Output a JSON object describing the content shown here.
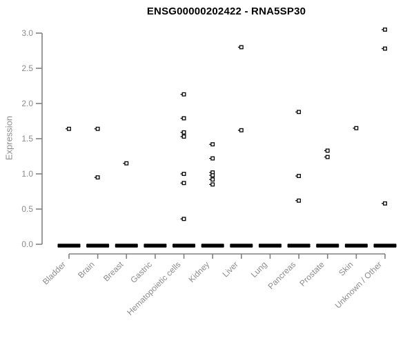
{
  "title": "ENSG00000202422 - RNA5SP30",
  "chart_data": {
    "type": "scatter",
    "subtype": "strip-plot-by-category",
    "title": "ENSG00000202422 - RNA5SP30",
    "xlabel": "",
    "ylabel": "Expression",
    "ylim": [
      0.0,
      3.0
    ],
    "ytick_labels": [
      "0.0",
      "0.5",
      "1.0",
      "1.5",
      "2.0",
      "2.5",
      "3.0"
    ],
    "ytick_values": [
      0.0,
      0.5,
      1.0,
      1.5,
      2.0,
      2.5,
      3.0
    ],
    "grid": false,
    "legend_position": "none",
    "marker": "small-open-black-square-with-left-tick",
    "categories": [
      "Bladder",
      "Brain",
      "Breast",
      "Gastric",
      "Hematopoietic cells",
      "Kidney",
      "Liver",
      "Lung",
      "Pancreas",
      "Prostate",
      "Skin",
      "Unknown / Other"
    ],
    "series": [
      {
        "name": "Bladder",
        "values": [
          1.64
        ]
      },
      {
        "name": "Brain",
        "values": [
          1.64,
          0.95
        ]
      },
      {
        "name": "Breast",
        "values": [
          1.15
        ]
      },
      {
        "name": "Gastric",
        "values": []
      },
      {
        "name": "Hematopoietic cells",
        "values": [
          2.13,
          1.79,
          1.59,
          1.53,
          1.0,
          0.87,
          0.36
        ]
      },
      {
        "name": "Kidney",
        "values": [
          1.42,
          1.22,
          1.02,
          0.98,
          0.92,
          0.85
        ]
      },
      {
        "name": "Liver",
        "values": [
          2.8,
          1.62
        ]
      },
      {
        "name": "Lung",
        "values": []
      },
      {
        "name": "Pancreas",
        "values": [
          1.88,
          0.97,
          0.62
        ]
      },
      {
        "name": "Prostate",
        "values": [
          1.33,
          1.24
        ]
      },
      {
        "name": "Skin",
        "values": [
          1.65
        ]
      },
      {
        "name": "Unknown / Other",
        "values": [
          3.05,
          2.78,
          0.58
        ]
      }
    ],
    "zero_cluster": {
      "description": "dense cluster of overlapping points at expression 0 in every category, rendered as a thick black dash",
      "value": 0.0,
      "present_in_all_categories": true
    },
    "colors": {
      "points": "#000000",
      "zero_bar": "#000000",
      "axis_line": "#808080",
      "axis_text": "#8b8b8b",
      "title_text": "#000000",
      "background": "#ffffff"
    }
  }
}
